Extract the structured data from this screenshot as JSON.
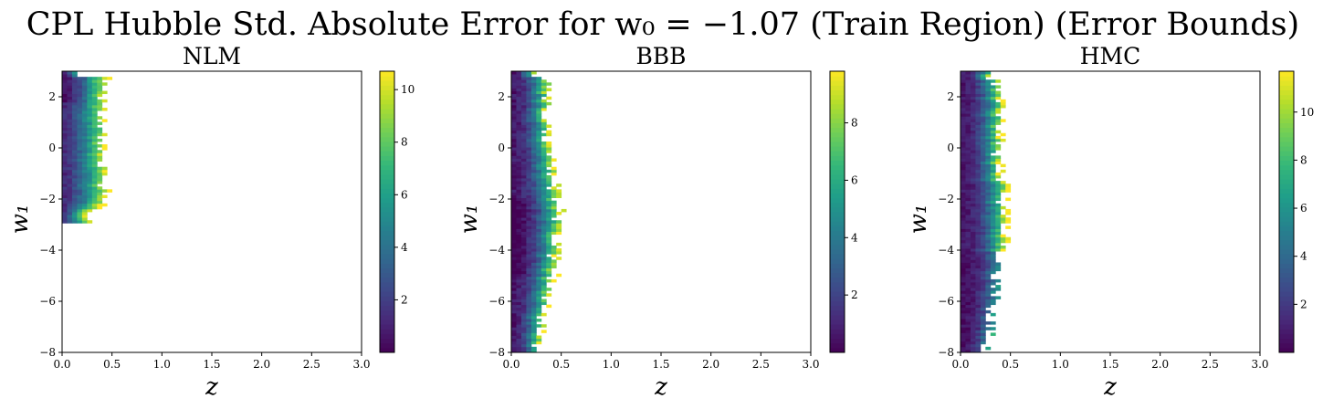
{
  "title": "CPL Hubble Std. Absolute Error for w₀ = −1.07 (Train Region) (Error Bounds)",
  "colormap": [
    "#440154",
    "#482878",
    "#3e4989",
    "#31688e",
    "#26828e",
    "#1f9e89",
    "#35b779",
    "#6ece58",
    "#b5de2b",
    "#fde725"
  ],
  "chart_data": [
    {
      "type": "heatmap",
      "title": "NLM",
      "xlabel": "z",
      "ylabel": "w₁",
      "xlim": [
        0,
        3
      ],
      "ylim": [
        -8,
        3
      ],
      "x_ticks": [
        "0.0",
        "0.5",
        "1.0",
        "1.5",
        "2.0",
        "2.5",
        "3.0"
      ],
      "y_ticks": [
        "−8",
        "−6",
        "−4",
        "−2",
        "0",
        "2"
      ],
      "colorbar": {
        "min": 0,
        "max": 10.7,
        "ticks": [
          "2",
          "4",
          "6",
          "8",
          "10"
        ]
      },
      "approx_region": {
        "w1_range": [
          -2.9,
          3.0
        ],
        "z_max": 0.42
      },
      "grid": false
    },
    {
      "type": "heatmap",
      "title": "BBB",
      "xlabel": "z",
      "ylabel": "w₁",
      "xlim": [
        0,
        3
      ],
      "ylim": [
        -8,
        3
      ],
      "x_ticks": [
        "0.0",
        "0.5",
        "1.0",
        "1.5",
        "2.0",
        "2.5",
        "3.0"
      ],
      "y_ticks": [
        "−8",
        "−6",
        "−4",
        "−2",
        "0",
        "2"
      ],
      "colorbar": {
        "min": 0,
        "max": 9.8,
        "ticks": [
          "2",
          "4",
          "6",
          "8"
        ]
      },
      "approx_region": {
        "w1_range": [
          -8.0,
          3.0
        ],
        "z_max": 0.52
      },
      "grid": false
    },
    {
      "type": "heatmap",
      "title": "HMC",
      "xlabel": "z",
      "ylabel": "w₁",
      "xlim": [
        0,
        3
      ],
      "ylim": [
        -8,
        3
      ],
      "x_ticks": [
        "0.0",
        "0.5",
        "1.0",
        "1.5",
        "2.0",
        "2.5",
        "3.0"
      ],
      "y_ticks": [
        "−8",
        "−6",
        "−4",
        "−2",
        "0",
        "2"
      ],
      "colorbar": {
        "min": 0,
        "max": 11.7,
        "ticks": [
          "2",
          "4",
          "6",
          "8",
          "10"
        ]
      },
      "approx_region": {
        "w1_range": [
          -8.0,
          3.0
        ],
        "z_max": 0.5
      },
      "grid": false
    }
  ]
}
